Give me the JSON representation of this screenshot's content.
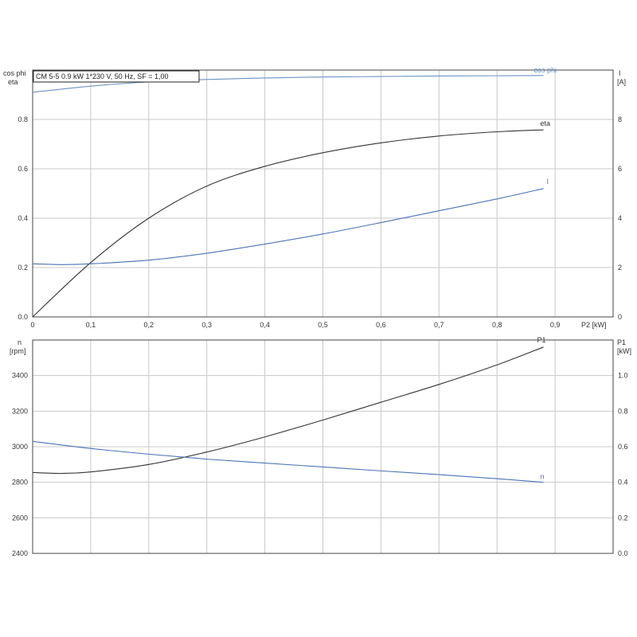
{
  "chart_data": [
    {
      "type": "line",
      "title": "CM 5-5   0.9 kW   1*230 V, 50 Hz, SF = 1,00",
      "xlabel": "P2 [kW]",
      "ylabel_left": [
        "cos phi",
        "eta"
      ],
      "ylabel_right": [
        "I",
        "[A]"
      ],
      "xlim": [
        0,
        1.0
      ],
      "ylim_left": [
        0,
        1.0
      ],
      "ylim_right": [
        0,
        10
      ],
      "xticks": [
        "0",
        "0,1",
        "0,2",
        "0,3",
        "0,4",
        "0,5",
        "0,6",
        "0,7",
        "0,8",
        "0,9"
      ],
      "yticks_left": [
        "0.0",
        "0.2",
        "0.4",
        "0.6",
        "0.8"
      ],
      "yticks_right": [
        "0",
        "2",
        "4",
        "6",
        "8"
      ],
      "grid": true,
      "series": [
        {
          "name": "cos phi",
          "axis": "left",
          "color": "#6a93c2",
          "x": [
            0,
            0.1,
            0.2,
            0.3,
            0.4,
            0.5,
            0.6,
            0.7,
            0.8,
            0.88
          ],
          "y": [
            0.91,
            0.935,
            0.952,
            0.962,
            0.968,
            0.972,
            0.974,
            0.976,
            0.977,
            0.978
          ]
        },
        {
          "name": "eta",
          "axis": "left",
          "color": "#333333",
          "x": [
            0,
            0.1,
            0.2,
            0.3,
            0.4,
            0.5,
            0.6,
            0.7,
            0.8,
            0.88
          ],
          "y": [
            0,
            0.22,
            0.4,
            0.53,
            0.61,
            0.665,
            0.705,
            0.733,
            0.75,
            0.758
          ]
        },
        {
          "name": "I",
          "axis": "right",
          "color": "#4a73b5",
          "x": [
            0,
            0.05,
            0.1,
            0.2,
            0.3,
            0.4,
            0.5,
            0.6,
            0.7,
            0.8,
            0.88
          ],
          "y": [
            2.15,
            2.12,
            2.15,
            2.3,
            2.58,
            2.95,
            3.36,
            3.82,
            4.3,
            4.78,
            5.2
          ]
        }
      ]
    },
    {
      "type": "line",
      "xlabel": "",
      "ylabel_left": [
        "n",
        "[rpm]"
      ],
      "ylabel_right": [
        "P1",
        "[kW]"
      ],
      "xlim": [
        0,
        1.0
      ],
      "ylim_left": [
        2400,
        3600
      ],
      "ylim_right": [
        0.0,
        1.2
      ],
      "yticks_left": [
        "2400",
        "2600",
        "2800",
        "3000",
        "3200",
        "3400"
      ],
      "yticks_right": [
        "0.0",
        "0.2",
        "0.4",
        "0.6",
        "0.8",
        "1.0"
      ],
      "grid": true,
      "series": [
        {
          "name": "P1",
          "axis": "right",
          "color": "#333333",
          "x": [
            0,
            0.05,
            0.1,
            0.2,
            0.3,
            0.4,
            0.5,
            0.6,
            0.7,
            0.8,
            0.88
          ],
          "y": [
            0.455,
            0.45,
            0.458,
            0.5,
            0.57,
            0.655,
            0.75,
            0.85,
            0.95,
            1.06,
            1.16
          ]
        },
        {
          "name": "n",
          "axis": "left",
          "color": "#4a73b5",
          "x": [
            0,
            0.1,
            0.2,
            0.3,
            0.4,
            0.5,
            0.6,
            0.7,
            0.8,
            0.88
          ],
          "y": [
            3030,
            2990,
            2958,
            2930,
            2908,
            2886,
            2864,
            2843,
            2820,
            2800
          ]
        }
      ]
    }
  ]
}
